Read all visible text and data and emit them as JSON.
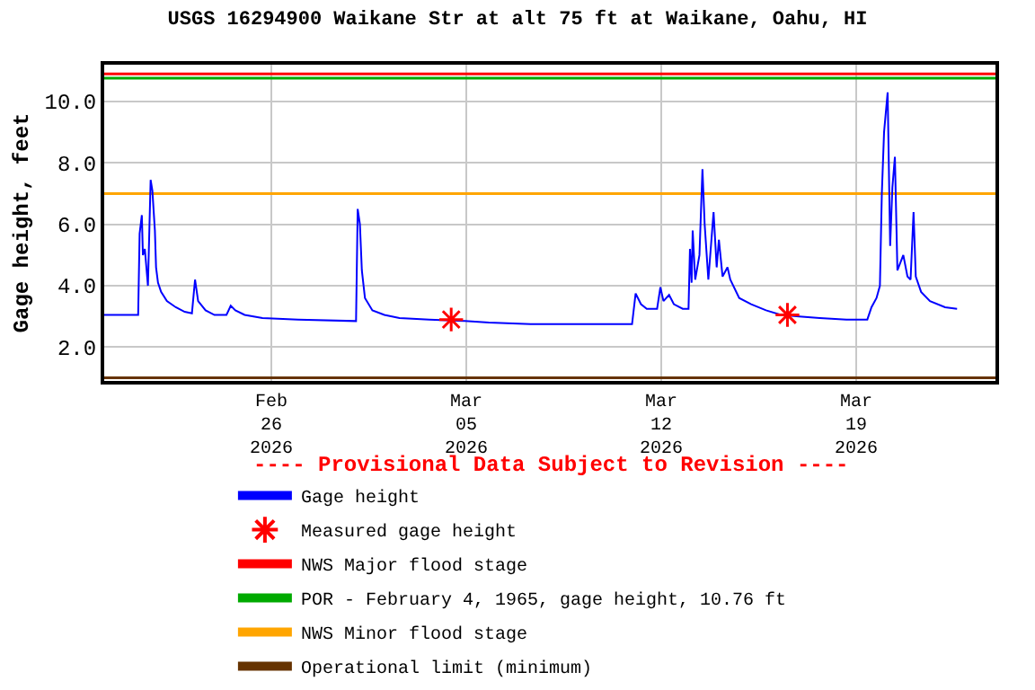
{
  "chart_data": {
    "type": "line",
    "title": "USGS 16294900 Waikane Str at alt 75 ft at Waikane, Oahu, HI",
    "ylabel": "Gage height, feet",
    "annotations": [
      "---- Provisional Data Subject to Revision ----"
    ],
    "xlim": [
      "2026-02-20T00:00",
      "2026-03-24T00:00"
    ],
    "xticks": [
      {
        "value": "2026-02-26",
        "label": "Feb\n26\n2026"
      },
      {
        "value": "2026-03-05",
        "label": "Mar\n05\n2026"
      },
      {
        "value": "2026-03-12",
        "label": "Mar\n12\n2026"
      },
      {
        "value": "2026-03-19",
        "label": "Mar\n19\n2026"
      }
    ],
    "ylim": [
      0.9,
      11.2
    ],
    "yticks": [
      {
        "value": 2,
        "label": "2.0"
      },
      {
        "value": 4,
        "label": "4.0"
      },
      {
        "value": 6,
        "label": "6.0"
      },
      {
        "value": 8,
        "label": "8.0"
      },
      {
        "value": 10,
        "label": "10.0"
      }
    ],
    "grid": true,
    "legend": "bottom",
    "series": [
      {
        "name": "Gage height",
        "type": "line",
        "color": "#0000ff",
        "marker": "none",
        "line_style": "solid",
        "x": [
          "2026-02-20T00:00",
          "2026-02-21T05:15",
          "2026-02-21T06:30",
          "2026-02-21T08:25",
          "2026-02-21T09:20",
          "2026-02-21T11:00",
          "2026-02-21T13:40",
          "2026-02-21T16:00",
          "2026-02-21T17:30",
          "2026-02-21T19:40",
          "2026-02-21T20:40",
          "2026-02-21T22:20",
          "2026-02-22T01:00",
          "2026-02-22T06:00",
          "2026-02-22T13:40",
          "2026-02-22T21:20",
          "2026-02-23T03:35",
          "2026-02-23T06:15",
          "2026-02-23T08:55",
          "2026-02-23T15:20",
          "2026-02-23T23:00",
          "2026-02-24T09:20",
          "2026-02-24T13:00",
          "2026-02-24T17:00",
          "2026-02-25T01:00",
          "2026-02-25T16:20",
          "2026-02-26T23:00",
          "2026-03-01T01:00",
          "2026-03-01T02:25",
          "2026-03-01T04:20",
          "2026-03-01T06:00",
          "2026-03-01T08:40",
          "2026-03-01T15:05",
          "2026-03-02T01:25",
          "2026-03-02T14:25",
          "2026-03-03T16:05",
          "2026-03-04T22:50",
          "2026-03-05T19:25",
          "2026-03-07T07:25",
          "2026-03-10T22:50",
          "2026-03-11T01:55",
          "2026-03-11T06:30",
          "2026-03-11T11:30",
          "2026-03-11T20:25",
          "2026-03-11T23:15",
          "2026-03-12T01:55",
          "2026-03-12T06:45",
          "2026-03-12T10:50",
          "2026-03-12T18:30",
          "2026-03-12T23:30",
          "2026-03-13T00:45",
          "2026-03-13T02:10",
          "2026-03-13T03:05",
          "2026-03-13T05:15",
          "2026-03-13T08:55",
          "2026-03-13T11:30",
          "2026-03-13T13:25",
          "2026-03-13T16:35",
          "2026-03-13T21:05",
          "2026-03-13T23:45",
          "2026-03-14T01:40",
          "2026-03-14T04:50",
          "2026-03-14T09:05",
          "2026-03-14T11:30",
          "2026-03-14T19:10",
          "2026-03-15T05:30",
          "2026-03-15T18:15",
          "2026-03-16T07:10",
          "2026-03-16T22:50",
          "2026-03-17T16:35",
          "2026-03-18T15:35",
          "2026-03-19T09:35",
          "2026-03-19T13:10",
          "2026-03-19T17:30",
          "2026-03-19T20:25",
          "2026-03-19T22:05",
          "2026-03-20T00:00",
          "2026-03-20T03:05",
          "2026-03-20T05:15",
          "2026-03-20T07:10",
          "2026-03-20T09:20",
          "2026-03-20T11:30",
          "2026-03-20T16:35",
          "2026-03-20T20:10",
          "2026-03-20T22:50",
          "2026-03-21T01:25",
          "2026-03-21T03:20",
          "2026-03-21T07:55",
          "2026-03-21T15:35",
          "2026-03-22T04:35",
          "2026-03-22T14:55"
        ],
        "values": [
          3.05,
          3.05,
          5.7,
          6.3,
          5.0,
          5.2,
          4.0,
          7.45,
          7.1,
          5.8,
          4.6,
          4.1,
          3.8,
          3.5,
          3.3,
          3.15,
          3.1,
          4.2,
          3.5,
          3.2,
          3.05,
          3.05,
          3.35,
          3.2,
          3.05,
          2.95,
          2.9,
          2.85,
          6.5,
          6.0,
          4.5,
          3.6,
          3.2,
          3.05,
          2.95,
          2.9,
          2.85,
          2.8,
          2.75,
          2.75,
          3.75,
          3.4,
          3.25,
          3.25,
          3.95,
          3.5,
          3.7,
          3.4,
          3.25,
          3.25,
          5.2,
          4.1,
          5.8,
          4.2,
          5.0,
          7.8,
          6.0,
          4.2,
          6.4,
          4.6,
          5.5,
          4.3,
          4.6,
          4.2,
          3.6,
          3.4,
          3.2,
          3.05,
          3.0,
          2.95,
          2.9,
          2.9,
          3.3,
          3.6,
          4.0,
          7.0,
          9.0,
          10.3,
          5.3,
          7.2,
          8.2,
          4.5,
          5.0,
          4.3,
          4.2,
          6.4,
          4.3,
          3.8,
          3.5,
          3.3,
          3.25
        ]
      },
      {
        "name": "Measured gage height",
        "type": "scatter",
        "color": "#ff0000",
        "marker": "cross",
        "x": [
          "2026-03-04T11:00",
          "2026-03-16T12:45"
        ],
        "values": [
          2.9,
          3.05
        ]
      }
    ],
    "ref_lines": [
      {
        "axis": "y",
        "value": 10.9,
        "label": "NWS Major flood stage",
        "color": "#ff0000"
      },
      {
        "axis": "y",
        "value": 10.76,
        "label": "POR - February 4, 1965, gage height, 10.76 ft",
        "color": "#00aa00"
      },
      {
        "axis": "y",
        "value": 7.0,
        "label": "NWS Minor flood stage",
        "color": "#ffa500"
      },
      {
        "axis": "y",
        "value": 1.0,
        "label": "Operational limit (minimum)",
        "color": "#663300"
      }
    ]
  }
}
